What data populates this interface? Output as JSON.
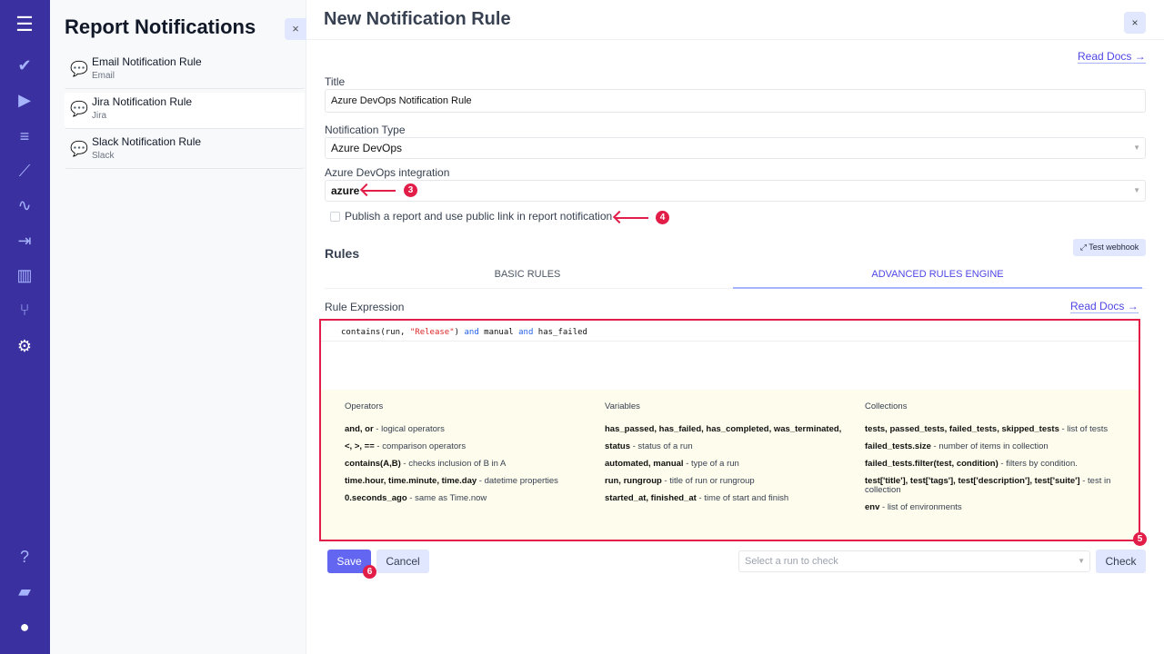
{
  "nav": {
    "icons": [
      "menu-icon",
      "check-icon",
      "play-icon",
      "checklist-icon",
      "steps-icon",
      "pulse-icon",
      "import-icon",
      "chart-icon",
      "branch-icon",
      "gear-icon",
      "help-icon",
      "folder-icon",
      "user-avatar-icon"
    ]
  },
  "panel": {
    "title": "Report Notifications",
    "close": "×",
    "items": [
      {
        "title": "Email Notification Rule",
        "type": "Email"
      },
      {
        "title": "Jira Notification Rule",
        "type": "Jira"
      },
      {
        "title": "Slack Notification Rule",
        "type": "Slack"
      }
    ]
  },
  "main": {
    "title": "New Notification Rule",
    "close": "×",
    "read_docs": "Read Docs →",
    "title_label": "Title",
    "title_value": "Azure DevOps Notification Rule",
    "type_label": "Notification Type",
    "type_value": "Azure DevOps",
    "integration_label": "Azure DevOps integration",
    "integration_value": "azure",
    "publish_label": "Publish a report and use public link in report notification",
    "rules_heading": "Rules",
    "test_webhook": "Test webhook",
    "tabs": [
      "BASIC RULES",
      "ADVANCED RULES ENGINE"
    ],
    "active_tab": 1,
    "rule_expression_label": "Rule Expression",
    "rule_read_docs": "Read Docs →",
    "code": {
      "p1": "contains(run, ",
      "str": "\"Release\"",
      "p2": ") ",
      "and1": "and",
      "p3": " manual ",
      "and2": "and",
      "p4": " has_failed"
    },
    "help": {
      "operators": {
        "title": "Operators",
        "rows": [
          [
            "and, or",
            " - logical operators"
          ],
          [
            "<, >, ==",
            " - comparison operators"
          ],
          [
            "contains(A,B)",
            " - checks inclusion of B in A"
          ],
          [
            "time.hour, time.minute, time.day",
            " - datetime properties"
          ],
          [
            "0.seconds_ago",
            " - same as Time.now"
          ]
        ]
      },
      "variables": {
        "title": "Variables",
        "rows": [
          [
            "has_passed, has_failed, has_completed, was_terminated,",
            ""
          ],
          [
            "status",
            " - status of a run"
          ],
          [
            "automated, manual",
            " - type of a run"
          ],
          [
            "run, rungroup",
            " - title of run or rungroup"
          ],
          [
            "started_at, finished_at",
            " - time of start and finish"
          ]
        ]
      },
      "collections": {
        "title": "Collections",
        "rows": [
          [
            "tests, passed_tests, failed_tests, skipped_tests",
            " - list of tests"
          ],
          [
            "failed_tests.size",
            " - number of items in collection"
          ],
          [
            "failed_tests.filter(test, condition)",
            " - filters by condition."
          ],
          [
            "test['title'], test['tags'], test['description'], test['suite']",
            " - test in collection"
          ],
          [
            "env",
            " - list of environments"
          ]
        ]
      }
    },
    "save": "Save",
    "cancel": "Cancel",
    "run_placeholder": "Select a run to check",
    "check": "Check",
    "annotations": [
      "3",
      "4",
      "5",
      "6"
    ]
  },
  "colors": {
    "sidebar": "#3b30a0",
    "accent": "#6366f1",
    "annotation": "#e11d48"
  }
}
